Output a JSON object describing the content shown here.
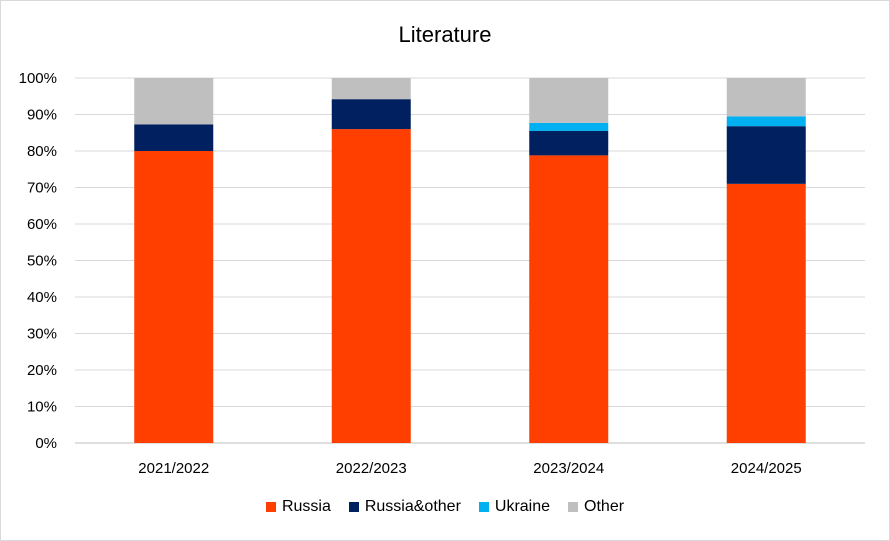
{
  "chart_data": {
    "type": "bar",
    "stacked": true,
    "title": "Literature",
    "categories": [
      "2021/2022",
      "2022/2023",
      "2023/2024",
      "2024/2025"
    ],
    "series": [
      {
        "name": "Russia",
        "color": "#FF3F00",
        "values": [
          80,
          86,
          78.8,
          71
        ]
      },
      {
        "name": "Russia&other",
        "color": "#002060",
        "values": [
          7.3,
          8.2,
          6.7,
          15.8
        ]
      },
      {
        "name": "Ukraine",
        "color": "#00B0F0",
        "values": [
          0,
          0,
          2.2,
          2.7
        ]
      },
      {
        "name": "Other",
        "color": "#BFBFBF",
        "values": [
          12.7,
          5.8,
          12.3,
          10.5
        ]
      }
    ],
    "ylim": [
      0,
      100
    ],
    "yticks": [
      "0%",
      "10%",
      "20%",
      "30%",
      "40%",
      "50%",
      "60%",
      "70%",
      "80%",
      "90%",
      "100%"
    ],
    "grid": true,
    "legend_position": "bottom"
  }
}
